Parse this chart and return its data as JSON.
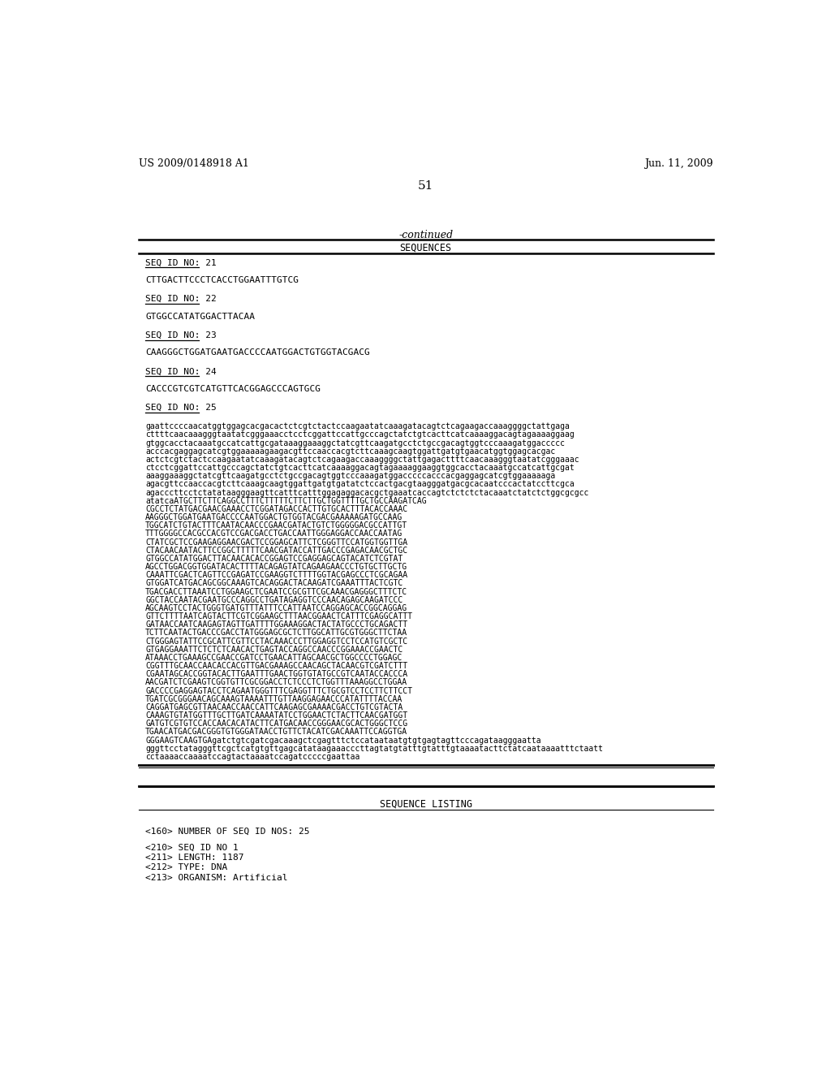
{
  "header_left": "US 2009/0148918 A1",
  "header_right": "Jun. 11, 2009",
  "page_number": "51",
  "continued_label": "-continued",
  "table_header": "SEQUENCES",
  "seq_entries": [
    {
      "id": "SEQ ID NO: 21",
      "sequence": "CTTGACTTCCCTCACCTGGAATTTGTCG"
    },
    {
      "id": "SEQ ID NO: 22",
      "sequence": "GTGGCCATATGGACTTACAA"
    },
    {
      "id": "SEQ ID NO: 23",
      "sequence": "CAAGGGCTGGATGAATGACCCCAATGGACTGTGGTACGACG"
    },
    {
      "id": "SEQ ID NO: 24",
      "sequence": "CACCCGTCGTCATGTTCACGGAGCCCAGTGCG"
    },
    {
      "id": "SEQ ID NO: 25",
      "sequence": ""
    }
  ],
  "seq25_lines": [
    "gaattccccaacatggtggagcacgacactctcgtctactccaagaatatcaaagatacagtctcagaagaccaaaggggctattgaga",
    "cttttcaacaaagggtaatatcgggaaacctcctcggattccattgcccagctatctgtcacttcatcaaaaggacagtagaaaaggaag",
    "gtggcacctacaaatgccatcattgcgataaaggaaaggctatcgttcaagatgcctctgccgacagtggtcccaaagatggaccccc",
    "acccacgaggagcatcgtggaaaaagaagacgttccaaccacgtcttcaaagcaagtggattgatgtgaacatggtggagcacgac",
    "actctcgtctactccaagaatatcaaagatacagtctcagaagaccaaaggggctattgagacttttcaacaaagggtaatatcgggaaac",
    "ctcctcggattccattgcccagctatctgtcacttcatcaaaaggacagtagaaaaggaaggtggcacctacaaatgccatcattgcgat",
    "aaaggaaaggctatcgttcaagatgcctctgccgacagtggtcccaaagatggacccccacccacgaggagcatcgtggaaaaaga",
    "agacgttccaaccacgtcttcaaagcaagtggattgatgtgatatctccactgacgtaagggatgacgcacaatcccactatccttcgca",
    "agacccttcctctatataagggaagttcatttcatttggagaggacacgctgaaatcaccagtctctctctacaaatctatctctggcgcgcc",
    "atatcaATGCTTCTTCAGGCCTTTCTTTTTCTTCTTGCTGGTTTTGCTGCCAAGATCAG",
    "CGCCTCTATGACGAACGAAACCTCGGATAGACCACTTGTGCACTTTACACCAAAC",
    "AAGGGCTGGATGAATGACCCCAATGGACTGTGGTACGACGAAAAAGATGCCAAG",
    "TGGCATCTGTACTTTCAATACAACCCGAACGATACTGTCTGGGGGACGCCATTGT",
    "TTTGGGGCCACGCCACGTCCGACGACCTGACCAATTGGGAGGACCAACCAATAG",
    "CTATCGCTCCGAAGAGGAACGACTCCGGAGCATTCTCGGGTTCCATGGTGGTTGA",
    "CTACAACAATACTTCCGGCTTTTTCAACGATACCATTGACCCGAGACAACGCTGC",
    "GTGGCCATATGGACTTACAACACACCGGAGTCCGAGGAGCAGTACATCTCGTAT",
    "AGCCTGGACGGTGGATACACTTTTACAGAGTATCAGAAGAACCCTGTGCTTGCTG",
    "CAAATTCGACTCAGTTCCGAGATCCGAAGGTCTTTTGGTACGAGCCCTCGCAGAA",
    "GTGGATCATGACAGCGGCAAAGTCACAGGACTACAAGATCGAAATTTACTCGTC",
    "TGACGACCTTAAATCCTGGAAGCTCGAATCCGCGTTCGCAAACGAGGGCTTTCTC",
    "GGCTACCAATACGAATGCCCAGGCCTGATAGAGGTCCCAACAGAGCAAGATCCC",
    "AGCAAGTCCTACTGGGTGATGTTTATTTCCATTAATCCAGGAGCACCGGCAGGAG",
    "GTTCTTTTAATCAGTACTTCGTCGGAAGCTTTAACGGAACTCATTTCGAGGCATTT",
    "GATAACCAATCAAGAGTAGTTGATTTTGGAAAGGACTACTATGCCCTGCAGACTT",
    "TCTTCAATACTGACCCGACCTATGGGAGCGCTCTTGGCATTGCGTGGGCTTCTAA",
    "CTGGGAGTATTCCGCATTCGTTCCTACAAACCCTTGGAGGTCCTCCATGTCGCTC",
    "GTGAGGAAATTCTCTCTCAACACTGAGTACCAGGCCAACCCGGAAACCGAACTC",
    "ATAAACCTGAAAGCCGAACCGATCCTGAACATTAGCAACGCTGGCCCCTGGAGC",
    "CGGTTTGCAACCAACACCACGTTGACGAAAGCCAACAGCTACAACGTCGATCTTT",
    "CGAATAGCACCGGTACACTTGAATTTGAACTGGTGTATGCCGTCAATACCACCCA",
    "AACGATCTCGAAGTCGGTGTTCGCGGACCTCTCCCTCTGGTTTAAAGGCCTGGAA",
    "GACCCCGAGGAGTACCTCAGAATGGGTTTCGAGGTTTCTGCGTCCTCCTTCTTCCT",
    "TGATCGCGGGAACAGCAAAGTAAAATTTGTTAAGGAGAACCCATATTTTACCAA",
    "CAGGATGAGCGTTAACAACCAACCATTCAAGAGCGAAAACGACCTGTCGTACTA",
    "CAAAGTGTATGGTTTGCTTGATCAAAATATCCTGGAACTCTACTTCAACGATGGT",
    "GATGTCGTGTCCACCAACACATACTTCATGACAACCGGGAACGCACTGGGCTCCG",
    "TGAACATGACGACGGGTGTGGGATAACCTGTTCTACATCGACAAATTCCAGGTGA",
    "GGGAAGTCAAGTGAgatctgtcgatcgacaaagctcgagtttctccataataatgtgtgagtagttcccagataagggaatta",
    "gggttcctatagggttcgctcatgtgttgagcatataagaaacccttagtatgtatttgtatttgtaaaatacttctatcaataaaatttctaatt",
    "cctaaaaccaaaatccagtactaaaatccagatcccccgaattaa"
  ],
  "sequence_listing_header": "SEQUENCE LISTING",
  "seq_listing_lines": [
    "<160> NUMBER OF SEQ ID NOS: 25",
    "",
    "<210> SEQ ID NO 1",
    "<211> LENGTH: 1187",
    "<212> TYPE: DNA",
    "<213> ORGANISM: Artificial"
  ],
  "bg_color": "#ffffff",
  "text_color": "#000000"
}
